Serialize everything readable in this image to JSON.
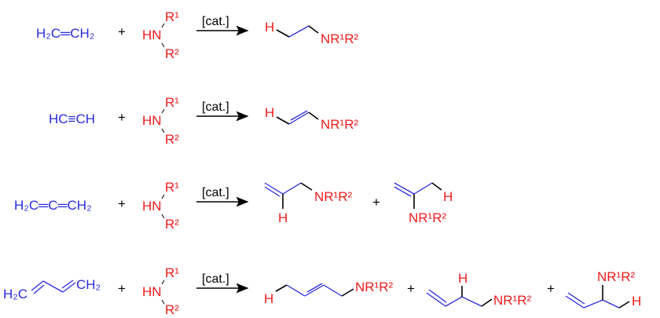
{
  "colors": {
    "hydrocarbon": "#2a2ae0",
    "amine": "#ee1c1c",
    "arrow": "#000000"
  },
  "amine": {
    "hn": "HN",
    "r1": "R¹",
    "r2": "R²"
  },
  "catalyst_label": "[cat.]",
  "plus": "+",
  "product_amine": "NR¹R²",
  "hydrogen": "H",
  "reactions": [
    {
      "substrate": "H₂C═CH₂"
    },
    {
      "substrate": "HC≡CH"
    },
    {
      "substrate": "H₂C═C═CH₂"
    },
    {
      "substrate_left": "H₂C",
      "substrate_right": "CH₂"
    }
  ]
}
